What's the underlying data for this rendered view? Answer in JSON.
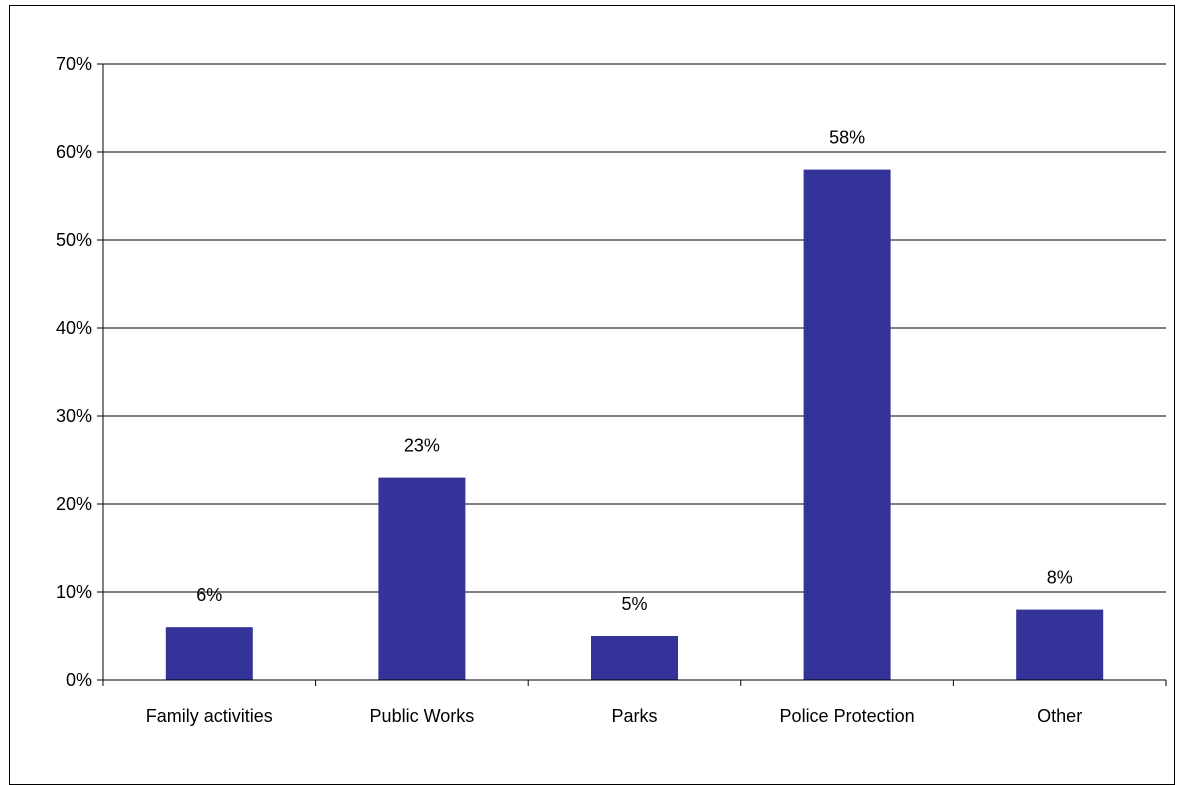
{
  "chart_data": {
    "type": "bar",
    "title": "",
    "xlabel": "",
    "ylabel": "",
    "categories": [
      "Family activities",
      "Public Works",
      "Parks",
      "Police Protection",
      "Other"
    ],
    "values": [
      6,
      23,
      5,
      58,
      8
    ],
    "data_labels": [
      "6%",
      "23%",
      "5%",
      "58%",
      "8%"
    ],
    "ylim": [
      0,
      70
    ],
    "yticks": [
      0,
      10,
      20,
      30,
      40,
      50,
      60,
      70
    ],
    "ytick_labels": [
      "0%",
      "10%",
      "20%",
      "30%",
      "40%",
      "50%",
      "60%",
      "70%"
    ],
    "grid": true,
    "legend": "none",
    "bar_color": "#333399"
  }
}
